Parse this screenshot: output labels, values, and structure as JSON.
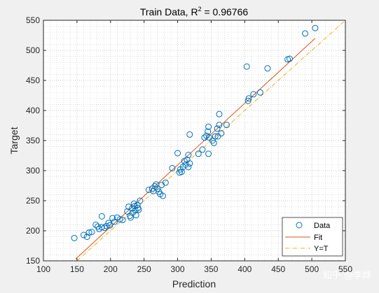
{
  "chart_data": {
    "type": "scatter",
    "title_prefix": "Train Data, R",
    "title_sup": "2",
    "title_suffix": " = 0.96766",
    "xlabel": "Prediction",
    "ylabel": "Target",
    "xlim": [
      100,
      550
    ],
    "ylim": [
      150,
      550
    ],
    "xticks": [
      100,
      150,
      200,
      250,
      300,
      350,
      400,
      450,
      500,
      550
    ],
    "yticks": [
      150,
      200,
      250,
      300,
      350,
      400,
      450,
      500,
      550
    ],
    "grid": "dotted",
    "legend_position": "bottom-right",
    "legend": [
      {
        "label": "Data",
        "kind": "marker",
        "color": "#0072bd"
      },
      {
        "label": "Fit",
        "kind": "line",
        "color": "#d95319"
      },
      {
        "label": "Y=T",
        "kind": "dashdot",
        "color": "#edb120"
      }
    ],
    "colors": {
      "data": "#0072bd",
      "fit": "#d95319",
      "identity": "#edb120"
    },
    "fit_line": {
      "x": [
        148,
        505
      ],
      "y": [
        153,
        520
      ]
    },
    "identity_line": {
      "x": [
        150,
        550
      ],
      "y": [
        150,
        550
      ]
    },
    "points": [
      [
        146,
        188
      ],
      [
        160,
        193
      ],
      [
        165,
        190
      ],
      [
        168,
        197
      ],
      [
        172,
        198
      ],
      [
        178,
        210
      ],
      [
        181,
        207
      ],
      [
        183,
        203
      ],
      [
        187,
        224
      ],
      [
        187,
        206
      ],
      [
        191,
        205
      ],
      [
        194,
        208
      ],
      [
        197,
        213
      ],
      [
        199,
        209
      ],
      [
        203,
        221
      ],
      [
        206,
        215
      ],
      [
        210,
        222
      ],
      [
        214,
        219
      ],
      [
        218,
        218
      ],
      [
        225,
        232
      ],
      [
        227,
        240
      ],
      [
        229,
        225
      ],
      [
        230,
        222
      ],
      [
        232,
        237
      ],
      [
        233,
        230
      ],
      [
        235,
        245
      ],
      [
        236,
        241
      ],
      [
        237,
        234
      ],
      [
        238,
        226
      ],
      [
        240,
        243
      ],
      [
        241,
        238
      ],
      [
        242,
        235
      ],
      [
        244,
        250
      ],
      [
        257,
        268
      ],
      [
        262,
        270
      ],
      [
        264,
        266
      ],
      [
        266,
        274
      ],
      [
        268,
        277
      ],
      [
        270,
        270
      ],
      [
        272,
        265
      ],
      [
        274,
        261
      ],
      [
        276,
        276
      ],
      [
        278,
        258
      ],
      [
        282,
        280
      ],
      [
        292,
        304
      ],
      [
        300,
        329
      ],
      [
        303,
        297
      ],
      [
        304,
        302
      ],
      [
        306,
        298
      ],
      [
        308,
        306
      ],
      [
        310,
        316
      ],
      [
        312,
        310
      ],
      [
        314,
        318
      ],
      [
        316,
        306
      ],
      [
        318,
        312
      ],
      [
        316,
        326
      ],
      [
        318,
        360
      ],
      [
        331,
        328
      ],
      [
        337,
        335
      ],
      [
        340,
        355
      ],
      [
        343,
        358
      ],
      [
        345,
        365
      ],
      [
        346,
        328
      ],
      [
        346,
        373
      ],
      [
        347,
        355
      ],
      [
        352,
        350
      ],
      [
        354,
        346
      ],
      [
        356,
        357
      ],
      [
        359,
        370
      ],
      [
        360,
        357
      ],
      [
        362,
        376
      ],
      [
        362,
        394
      ],
      [
        365,
        362
      ],
      [
        373,
        376
      ],
      [
        403,
        473
      ],
      [
        405,
        416
      ],
      [
        406,
        420
      ],
      [
        413,
        427
      ],
      [
        423,
        430
      ],
      [
        434,
        470
      ],
      [
        464,
        485
      ],
      [
        467,
        486
      ],
      [
        490,
        528
      ],
      [
        505,
        537
      ]
    ]
  },
  "watermark": "知乎 @李烨"
}
